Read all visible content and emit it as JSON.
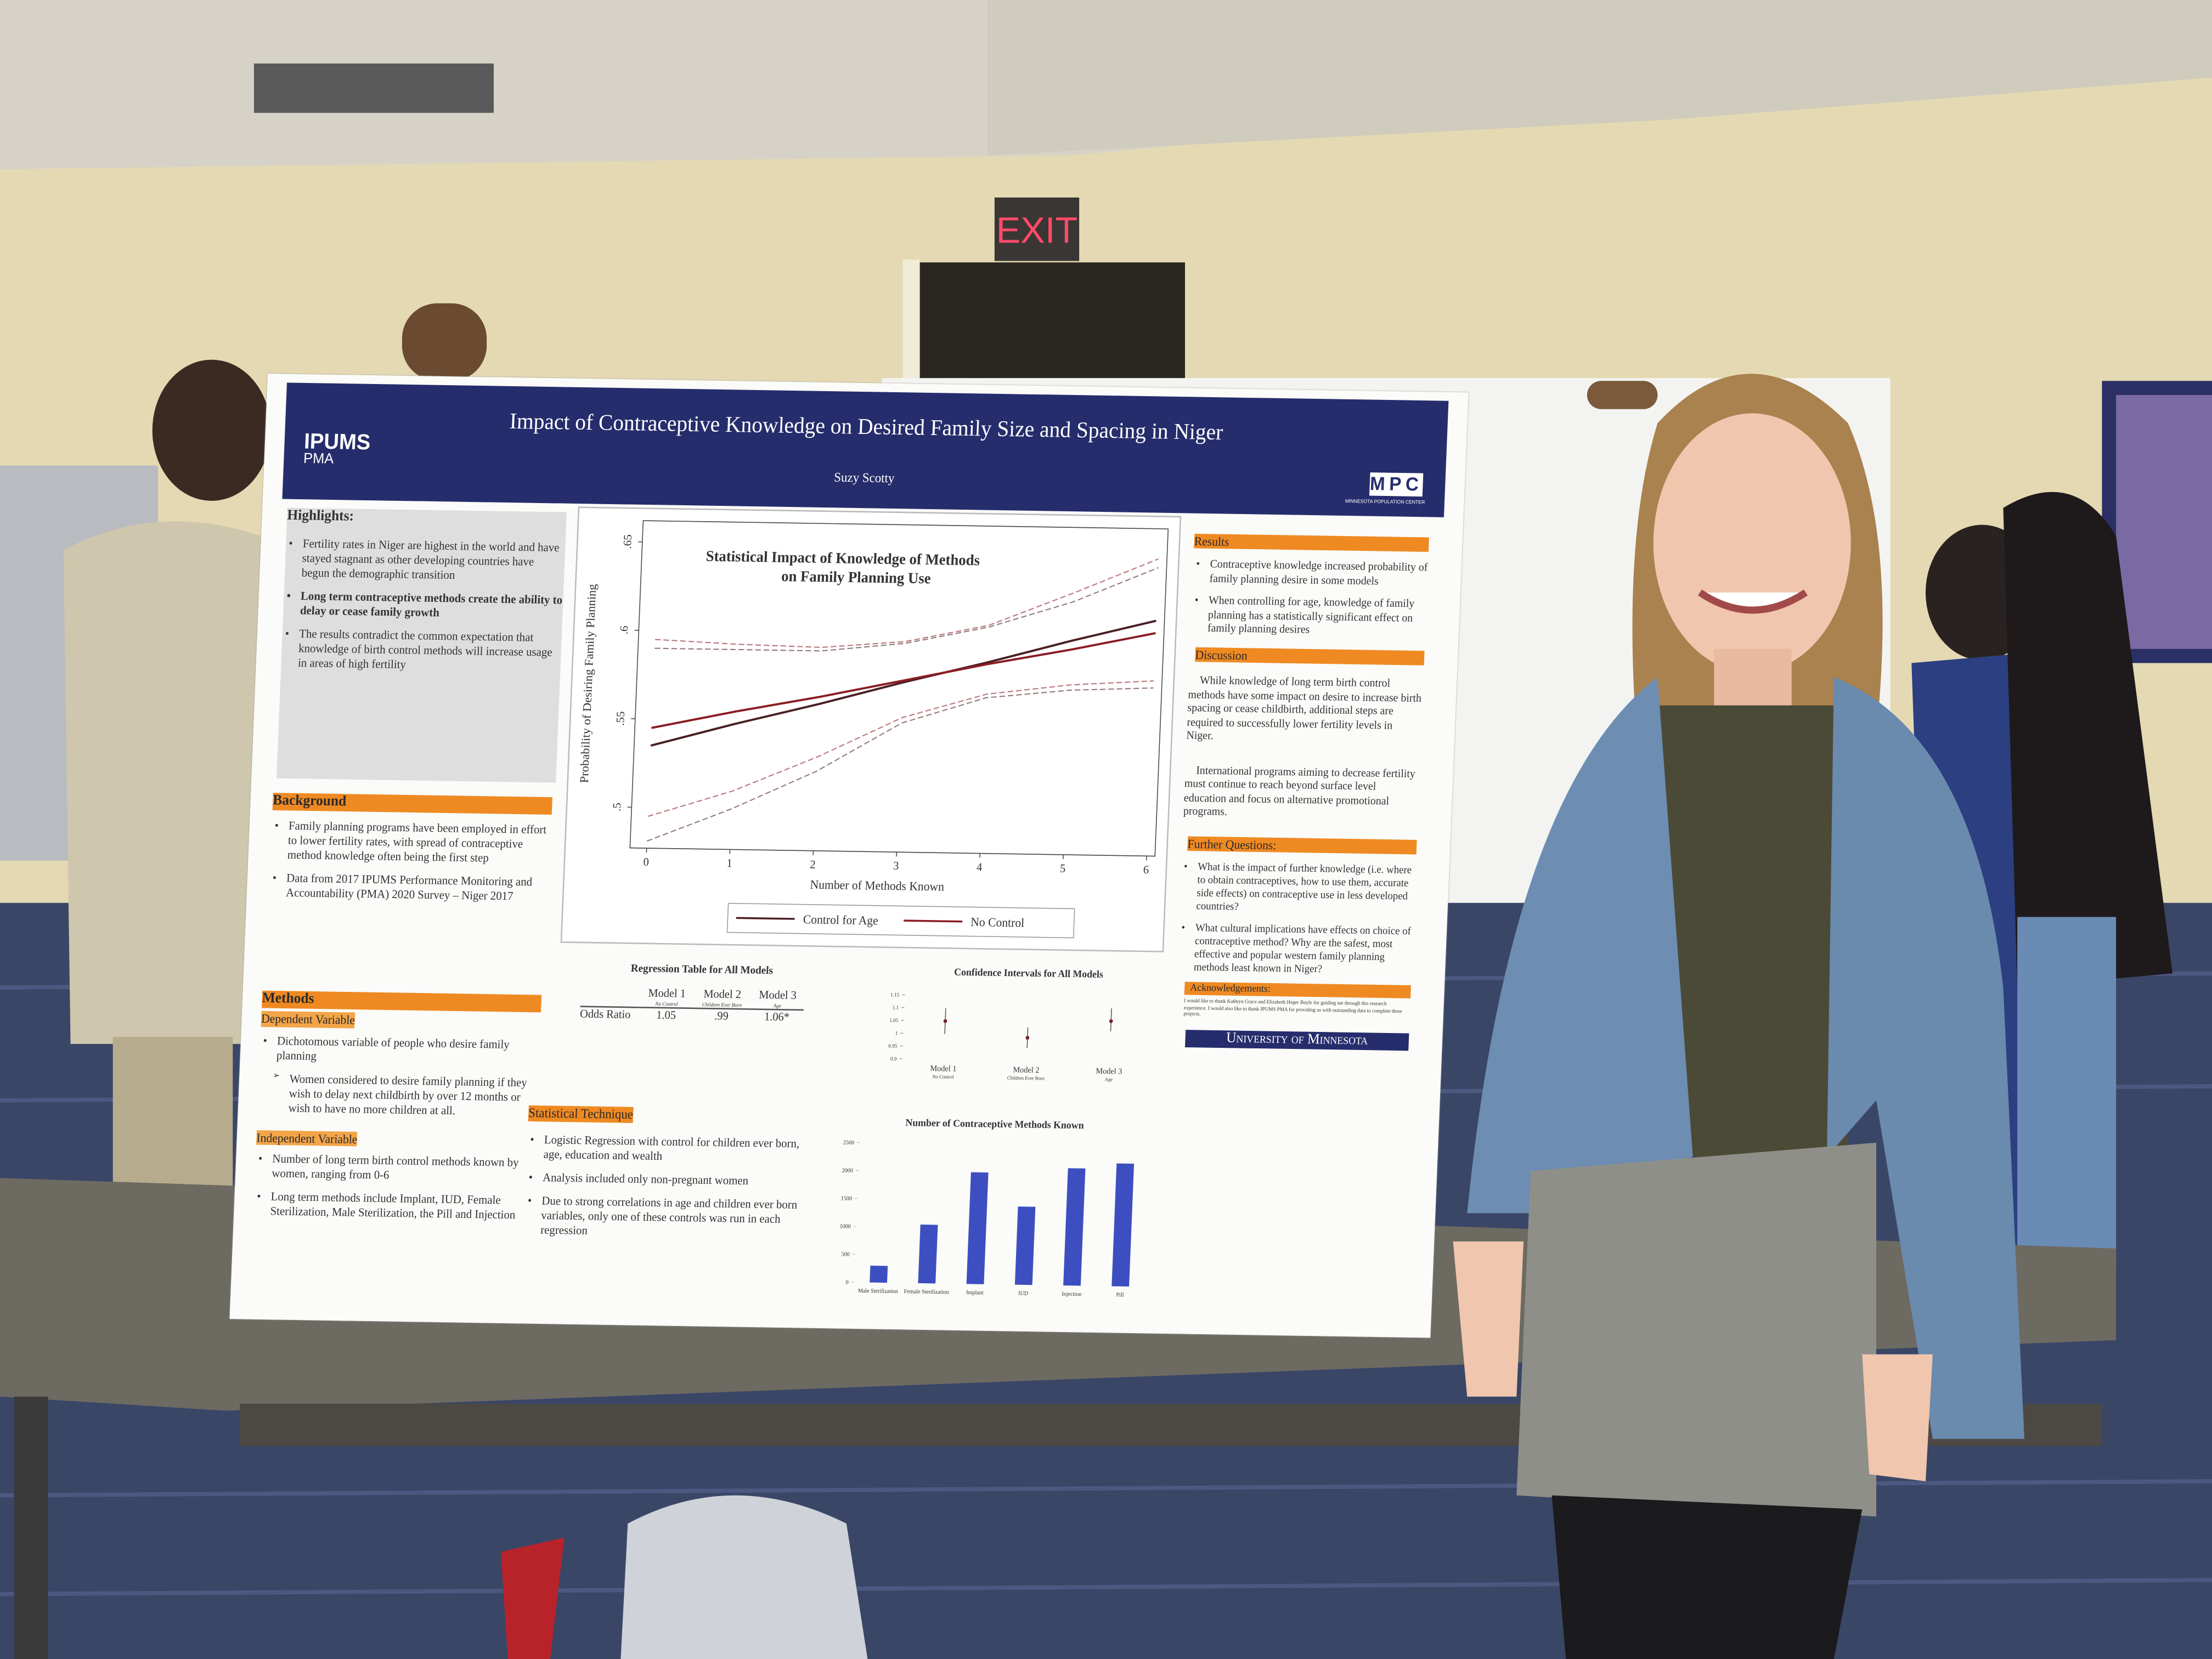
{
  "scene": {
    "exit_sign": "EXIT"
  },
  "poster": {
    "header": {
      "title": "Impact of Contraceptive Knowledge on Desired Family Size and Spacing in Niger",
      "author": "Suzy Scotty",
      "logo_left": "IPUMS",
      "logo_left_sub": "PMA",
      "logo_right": "MPC",
      "logo_right_sub": "MINNESOTA POPULATION CENTER"
    },
    "highlights": {
      "title": "Highlights:",
      "items": [
        "Fertility rates in Niger are highest in the world and have stayed stagnant as other developing countries have begun the demographic transition",
        "Long term contraceptive methods create the ability to delay or cease family growth",
        "The results contradict the common expectation that knowledge of birth control methods will increase usage in areas of high fertility"
      ]
    },
    "background": {
      "title": "Background",
      "items": [
        "Family planning programs have been employed in effort to lower fertility rates, with spread of contraceptive method knowledge often being the first step",
        "Data from 2017 IPUMS Performance Monitoring and Accountability (PMA) 2020 Survey – Niger 2017"
      ]
    },
    "methods": {
      "title": "Methods",
      "dependent_title": "Dependent Variable",
      "dependent_items": [
        "Dichotomous variable of people who desire family planning"
      ],
      "dependent_sub": "Women considered to desire family planning if they wish to delay next childbirth by over 12 months or wish to have no more children at all.",
      "independent_title": "Independent Variable",
      "independent_items": [
        "Number of long term birth control methods known by women, ranging from 0-6"
      ],
      "extra_items": [
        "Long term methods include Implant, IUD, Female Sterilization, Male Sterilization, the Pill and Injection"
      ]
    },
    "statistical_technique": {
      "title": "Statistical Technique",
      "items": [
        "Logistic Regression with control for children ever born, age, education and wealth",
        "Analysis included only non-pregnant women",
        "Due to strong correlations in age and children ever born variables, only one of these controls was run in each regression"
      ]
    },
    "line_chart": {
      "type": "line",
      "title": [
        "Statistical Impact of Knowledge of Methods",
        "on Family Planning Use"
      ],
      "x_label": "Number of Methods Known",
      "y_label": "Probability of Desiring Family Planning",
      "x": [
        0,
        1,
        2,
        3,
        4,
        5,
        6
      ],
      "xlim": [
        -0.2,
        6.1
      ],
      "ylim": [
        0.477,
        0.662
      ],
      "xticks": [
        0,
        1,
        2,
        3,
        4,
        5,
        6
      ],
      "yticks": [
        {
          "value": 0.5,
          "label": ".5"
        },
        {
          "value": 0.55,
          "label": ".55"
        },
        {
          "value": 0.6,
          "label": ".6"
        },
        {
          "value": 0.65,
          "label": ".65"
        }
      ],
      "series": [
        {
          "name": "Control for Age",
          "color": "#4a1f24",
          "values": [
            0.535,
            0.548,
            0.56,
            0.573,
            0.585,
            0.598,
            0.61
          ],
          "ci_lower": [
            0.481,
            0.5,
            0.522,
            0.55,
            0.565,
            0.57,
            0.572
          ],
          "ci_upper": [
            0.59,
            0.59,
            0.59,
            0.595,
            0.605,
            0.62,
            0.64
          ]
        },
        {
          "name": "No Control",
          "color": "#8b1c24",
          "values": [
            0.545,
            0.555,
            0.564,
            0.574,
            0.584,
            0.593,
            0.603
          ],
          "ci_lower": [
            0.495,
            0.51,
            0.53,
            0.553,
            0.567,
            0.573,
            0.576
          ],
          "ci_upper": [
            0.595,
            0.593,
            0.592,
            0.596,
            0.606,
            0.625,
            0.645
          ]
        }
      ]
    },
    "regression_table": {
      "title": "Regression Table for All Models",
      "columns": [
        {
          "name": "Model 1",
          "sub": "No Control"
        },
        {
          "name": "Model 2",
          "sub": "Children Ever Born"
        },
        {
          "name": "Model 3",
          "sub": "Age"
        }
      ],
      "row_label": "Odds Ratio",
      "values": [
        "1.05",
        ".99",
        "1.06*"
      ]
    },
    "ci_chart": {
      "type": "errorbar",
      "title": "Confidence Intervals for All Models",
      "categories": [
        "Model 1",
        "Model 2",
        "Model 3"
      ],
      "sublabels": [
        "No Control",
        "Children Ever Born",
        "Age"
      ],
      "values": [
        1.05,
        0.99,
        1.06
      ],
      "ci_low": [
        1.0,
        0.95,
        1.02
      ],
      "ci_high": [
        1.1,
        1.03,
        1.11
      ],
      "color": "#7a1f24",
      "ylim": [
        0.9,
        1.15
      ],
      "yticks": [
        {
          "value": 0.9,
          "label": "0.9"
        },
        0.95,
        1,
        1.05,
        1.1,
        1.15
      ]
    },
    "bar_chart": {
      "type": "bar",
      "title": "Number of Contraceptive Methods Known",
      "categories": [
        "Male Sterilization",
        "Female Sterilization",
        "Implant",
        "IUD",
        "Injection",
        "Pill"
      ],
      "values": [
        300,
        1050,
        2000,
        1400,
        2100,
        2200
      ],
      "color": "#3d4fc0",
      "ylim": [
        0,
        2500
      ],
      "yticks": [
        0,
        500,
        1000,
        1500,
        2000,
        2500
      ]
    },
    "results": {
      "title": "Results",
      "items": [
        "Contraceptive knowledge increased probability of family planning desire in some models",
        "When controlling for age, knowledge of family planning has a statistically significant effect on family planning desires"
      ]
    },
    "discussion": {
      "title": "Discussion",
      "paragraphs": [
        "While knowledge of long term birth control methods have some impact on desire to increase birth spacing or cease childbirth, additional steps are required to successfully lower fertility levels in Niger.",
        "International programs aiming to decrease fertility must continue to reach beyond surface level education and focus on alternative promotional programs."
      ]
    },
    "further_questions": {
      "title": "Further Questions:",
      "items": [
        "What is the impact of further knowledge (i.e. where to obtain contraceptives, how to use them, accurate side effects) on contraceptive use in less developed countries?",
        "What cultural implications have effects on choice of contraceptive method? Why are the safest, most effective and popular western family planning methods least known in Niger?"
      ]
    },
    "acknowledgements": {
      "title": "Acknowledgements:",
      "text": "I would like to thank Kathryn Grace and Elizabeth Heger Boyle for guiding me through this research experience. I would also like to thank IPUMS PMA for providing us with outstanding data to complete these projects."
    },
    "footer": "University of Minnesota"
  }
}
